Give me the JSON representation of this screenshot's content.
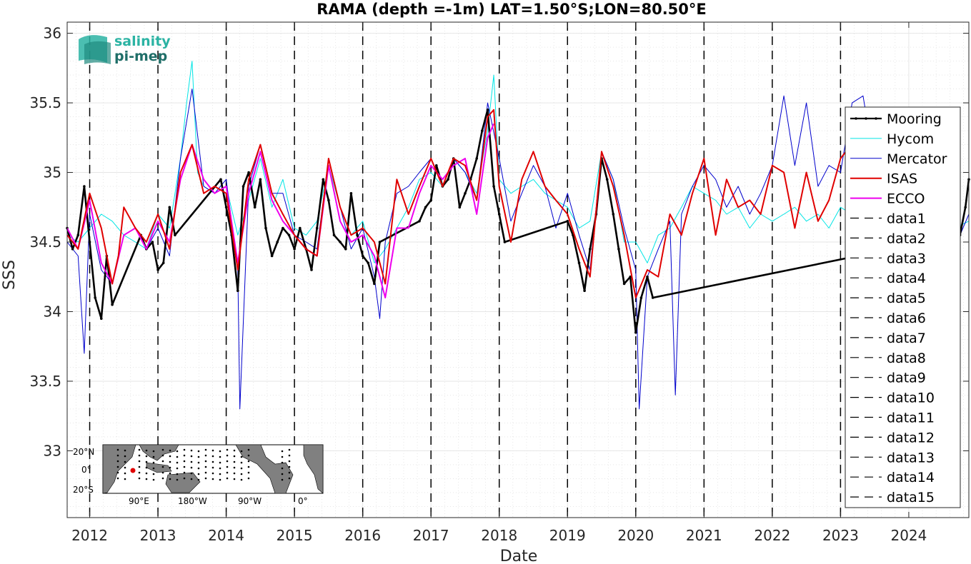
{
  "chart_data": {
    "type": "line",
    "title": "RAMA (depth =-1m) LAT=1.50°S;LON=80.50°E",
    "xlabel": "Date",
    "ylabel": "SSS",
    "xlim": [
      2011.67,
      2024.88
    ],
    "ylim": [
      32.52,
      36.08
    ],
    "grid": true,
    "legend_position": "right",
    "x_ticks": [
      2012,
      2013,
      2014,
      2015,
      2016,
      2017,
      2018,
      2019,
      2020,
      2021,
      2022,
      2023,
      2024
    ],
    "x_tick_labels": [
      "2012",
      "2013",
      "2014",
      "2015",
      "2016",
      "2017",
      "2018",
      "2019",
      "2020",
      "2021",
      "2022",
      "2023",
      "2024"
    ],
    "y_ticks": [
      33,
      33.5,
      34,
      34.5,
      35,
      35.5,
      36
    ],
    "y_tick_labels": [
      "33",
      "33.5",
      "34",
      "34.5",
      "35",
      "35.5",
      "36"
    ],
    "year_markers": [
      2012,
      2013,
      2014,
      2015,
      2016,
      2017,
      2018,
      2019,
      2020,
      2021,
      2022,
      2023
    ],
    "series": [
      {
        "name": "Mooring",
        "color": "#000000",
        "style": "solid-dots",
        "x": [
          2011.67,
          2011.75,
          2011.83,
          2011.92,
          2012.0,
          2012.08,
          2012.17,
          2012.25,
          2012.33,
          2012.75,
          2012.83,
          2012.92,
          2013.0,
          2013.08,
          2013.17,
          2013.25,
          2013.92,
          2014.0,
          2014.08,
          2014.17,
          2014.25,
          2014.33,
          2014.42,
          2014.5,
          2014.58,
          2014.67,
          2014.75,
          2014.83,
          2014.92,
          2015.0,
          2015.08,
          2015.17,
          2015.25,
          2015.33,
          2015.42,
          2015.5,
          2015.58,
          2015.67,
          2015.75,
          2015.83,
          2015.92,
          2016.0,
          2016.08,
          2016.17,
          2016.25,
          2016.83,
          2016.92,
          2017.0,
          2017.08,
          2017.17,
          2017.25,
          2017.33,
          2017.42,
          2017.5,
          2017.58,
          2017.67,
          2017.75,
          2017.83,
          2017.92,
          2018.0,
          2018.08,
          2019.0,
          2019.08,
          2019.17,
          2019.25,
          2019.33,
          2019.42,
          2019.5,
          2019.58,
          2019.67,
          2019.75,
          2019.83,
          2019.92,
          2020.0,
          2020.08,
          2020.17,
          2020.25,
          2024.75,
          2024.83,
          2024.88
        ],
        "y": [
          34.6,
          34.45,
          34.55,
          34.9,
          34.5,
          34.1,
          33.95,
          34.4,
          34.05,
          34.55,
          34.45,
          34.5,
          34.3,
          34.35,
          34.75,
          34.55,
          34.95,
          34.75,
          34.55,
          34.15,
          34.9,
          35.0,
          34.75,
          34.95,
          34.6,
          34.4,
          34.5,
          34.6,
          34.55,
          34.45,
          34.6,
          34.45,
          34.3,
          34.6,
          34.95,
          34.8,
          34.55,
          34.5,
          34.45,
          34.85,
          34.55,
          34.4,
          34.35,
          34.2,
          34.5,
          34.65,
          34.75,
          34.8,
          35.05,
          34.9,
          34.95,
          35.1,
          34.75,
          34.85,
          34.95,
          35.1,
          35.3,
          35.45,
          34.9,
          34.7,
          34.5,
          34.65,
          34.55,
          34.35,
          34.15,
          34.45,
          34.7,
          35.1,
          34.95,
          34.7,
          34.45,
          34.2,
          34.25,
          33.85,
          34.1,
          34.25,
          34.1,
          34.55,
          34.75,
          34.95
        ]
      },
      {
        "name": "Hycom",
        "color": "#00e5e5",
        "style": "solid",
        "x": [
          2011.67,
          2011.83,
          2012.0,
          2012.17,
          2012.33,
          2012.5,
          2012.67,
          2012.83,
          2013.0,
          2013.17,
          2013.33,
          2013.42,
          2013.5,
          2013.58,
          2013.67,
          2013.83,
          2014.0,
          2014.17,
          2014.33,
          2014.5,
          2014.67,
          2014.83,
          2015.0,
          2015.17,
          2015.33,
          2015.5,
          2015.67,
          2015.83,
          2016.0,
          2016.17,
          2016.33,
          2016.5,
          2016.67,
          2016.83,
          2017.0,
          2017.17,
          2017.33,
          2017.5,
          2017.67,
          2017.83,
          2017.92,
          2018.0,
          2018.17,
          2018.33,
          2018.5,
          2018.67,
          2018.83,
          2019.0,
          2019.17,
          2019.33,
          2019.5,
          2019.67,
          2019.83,
          2020.0,
          2020.17,
          2020.33,
          2020.5,
          2020.67,
          2020.83,
          2021.0,
          2021.17,
          2021.33,
          2021.5,
          2021.67,
          2021.83,
          2022.0,
          2022.17,
          2022.33,
          2022.5,
          2022.67,
          2022.83,
          2023.0,
          2023.17,
          2023.33,
          2023.5,
          2023.67,
          2023.83,
          2024.0,
          2024.17,
          2024.33,
          2024.5,
          2024.67,
          2024.88
        ],
        "y": [
          34.55,
          34.5,
          34.6,
          34.7,
          34.65,
          34.55,
          34.5,
          34.45,
          34.7,
          34.6,
          35.1,
          35.5,
          35.8,
          35.0,
          34.9,
          34.85,
          34.9,
          34.55,
          34.8,
          35.1,
          34.75,
          34.95,
          34.6,
          34.55,
          34.65,
          35.05,
          34.75,
          34.55,
          34.65,
          34.35,
          34.45,
          34.6,
          34.75,
          34.95,
          35.0,
          34.9,
          35.1,
          35.0,
          34.85,
          35.3,
          35.7,
          34.95,
          34.85,
          34.9,
          34.95,
          34.85,
          34.8,
          34.75,
          34.6,
          34.65,
          35.15,
          34.95,
          34.5,
          34.5,
          34.35,
          34.55,
          34.6,
          34.75,
          34.9,
          34.85,
          34.8,
          34.7,
          34.75,
          34.6,
          34.7,
          34.65,
          34.7,
          34.75,
          34.65,
          34.7,
          34.6,
          34.75,
          34.7,
          34.85,
          34.75,
          34.65,
          34.7,
          34.6,
          34.75,
          34.65,
          34.7,
          34.6,
          34.65
        ]
      },
      {
        "name": "Mercator",
        "color": "#0000cc",
        "style": "solid",
        "x": [
          2011.67,
          2011.83,
          2011.92,
          2012.0,
          2012.17,
          2012.33,
          2012.5,
          2012.67,
          2012.83,
          2013.0,
          2013.17,
          2013.33,
          2013.5,
          2013.67,
          2013.83,
          2014.0,
          2014.17,
          2014.2,
          2014.33,
          2014.5,
          2014.67,
          2014.83,
          2015.0,
          2015.17,
          2015.33,
          2015.5,
          2015.67,
          2015.83,
          2016.0,
          2016.17,
          2016.25,
          2016.33,
          2016.5,
          2016.67,
          2016.83,
          2017.0,
          2017.17,
          2017.33,
          2017.5,
          2017.67,
          2017.83,
          2018.0,
          2018.17,
          2018.33,
          2018.5,
          2018.67,
          2018.83,
          2019.0,
          2019.17,
          2019.33,
          2019.5,
          2019.67,
          2019.83,
          2020.0,
          2020.05,
          2020.17,
          2020.33,
          2020.5,
          2020.58,
          2020.67,
          2020.83,
          2021.0,
          2021.17,
          2021.33,
          2021.5,
          2021.67,
          2021.83,
          2022.0,
          2022.17,
          2022.33,
          2022.5,
          2022.67,
          2022.83,
          2023.0,
          2023.17,
          2023.33,
          2023.5,
          2023.67,
          2023.83,
          2024.0,
          2024.17,
          2024.33,
          2024.5,
          2024.67,
          2024.75,
          2024.88
        ],
        "y": [
          34.5,
          34.4,
          33.7,
          34.7,
          34.3,
          34.2,
          34.55,
          34.6,
          34.45,
          34.6,
          34.4,
          35.1,
          35.6,
          34.9,
          34.85,
          34.95,
          34.3,
          33.3,
          34.9,
          35.2,
          34.85,
          34.85,
          34.55,
          34.5,
          34.45,
          35.1,
          34.75,
          34.45,
          34.6,
          34.25,
          33.95,
          34.5,
          34.85,
          34.9,
          35.0,
          35.1,
          34.9,
          35.1,
          35.0,
          34.8,
          35.5,
          35.1,
          34.65,
          34.85,
          35.05,
          34.9,
          34.6,
          34.85,
          34.55,
          34.3,
          35.15,
          34.95,
          34.6,
          34.3,
          33.3,
          34.25,
          34.45,
          34.65,
          33.4,
          34.7,
          34.9,
          35.05,
          34.95,
          34.75,
          34.9,
          34.7,
          34.85,
          35.05,
          35.55,
          35.05,
          35.5,
          34.9,
          35.05,
          35.0,
          35.5,
          35.55,
          35.05,
          35.1,
          35.45,
          35.0,
          34.85,
          34.8,
          34.9,
          34.8,
          34.55,
          34.7
        ]
      },
      {
        "name": "ISAS",
        "color": "#e00000",
        "style": "solid",
        "x": [
          2011.67,
          2011.83,
          2012.0,
          2012.17,
          2012.33,
          2012.42,
          2012.5,
          2012.67,
          2012.83,
          2013.0,
          2013.17,
          2013.33,
          2013.5,
          2013.67,
          2013.83,
          2014.0,
          2014.17,
          2014.33,
          2014.5,
          2014.67,
          2014.83,
          2015.0,
          2015.17,
          2015.33,
          2015.5,
          2015.67,
          2015.83,
          2016.0,
          2016.17,
          2016.33,
          2016.5,
          2016.67,
          2016.83,
          2017.0,
          2017.17,
          2017.33,
          2017.5,
          2017.67,
          2017.83,
          2017.92,
          2018.0,
          2018.17,
          2018.33,
          2018.5,
          2018.67,
          2018.83,
          2019.0,
          2019.17,
          2019.33,
          2019.5,
          2019.67,
          2019.83,
          2020.0,
          2020.17,
          2020.33,
          2020.5,
          2020.67,
          2020.83,
          2021.0,
          2021.17,
          2021.33,
          2021.5,
          2021.67,
          2021.83,
          2022.0,
          2022.17,
          2022.33,
          2022.5,
          2022.67,
          2022.83,
          2023.0,
          2023.08,
          2023.17
        ],
        "y": [
          34.55,
          34.45,
          34.85,
          34.6,
          34.2,
          34.4,
          34.75,
          34.6,
          34.5,
          34.7,
          34.45,
          35.0,
          35.2,
          34.85,
          34.9,
          34.85,
          34.3,
          34.95,
          35.2,
          34.85,
          34.7,
          34.55,
          34.45,
          34.4,
          35.1,
          34.75,
          34.55,
          34.6,
          34.5,
          34.2,
          34.95,
          34.7,
          34.9,
          35.1,
          34.9,
          35.1,
          35.05,
          34.8,
          35.4,
          35.45,
          34.9,
          34.5,
          34.95,
          35.15,
          34.9,
          34.8,
          34.7,
          34.45,
          34.25,
          35.15,
          34.9,
          34.55,
          34.1,
          34.3,
          34.25,
          34.7,
          34.55,
          34.85,
          35.1,
          34.55,
          34.95,
          34.75,
          34.8,
          34.7,
          35.05,
          35.0,
          34.6,
          35.0,
          34.65,
          34.8,
          35.1,
          35.15,
          35.0
        ]
      },
      {
        "name": "ECCO",
        "color": "#ee00ee",
        "style": "solid",
        "x": [
          2011.67,
          2011.83,
          2012.0,
          2012.17,
          2012.33,
          2012.5,
          2012.67,
          2012.83,
          2013.0,
          2013.17,
          2013.33,
          2013.5,
          2013.67,
          2013.83,
          2014.0,
          2014.17,
          2014.33,
          2014.5,
          2014.67,
          2014.83,
          2015.0,
          2015.17,
          2015.33,
          2015.5,
          2015.67,
          2015.83,
          2016.0,
          2016.17,
          2016.33,
          2016.5,
          2016.67,
          2016.83,
          2017.0,
          2017.17,
          2017.33,
          2017.5,
          2017.67,
          2017.83,
          2017.92
        ],
        "y": [
          34.6,
          34.45,
          34.8,
          34.35,
          34.2,
          34.55,
          34.6,
          34.45,
          34.65,
          34.5,
          34.95,
          35.2,
          34.95,
          34.85,
          34.9,
          34.35,
          34.85,
          35.15,
          34.8,
          34.65,
          34.55,
          34.45,
          34.4,
          35.05,
          34.65,
          34.5,
          34.55,
          34.4,
          34.1,
          34.6,
          34.6,
          34.85,
          35.05,
          34.95,
          35.05,
          35.1,
          34.7,
          35.25,
          35.35
        ]
      }
    ],
    "legend_dashed_entries": [
      "data1",
      "data2",
      "data3",
      "data4",
      "data5",
      "data6",
      "data7",
      "data8",
      "data9",
      "data10",
      "data11",
      "data12",
      "data13",
      "data14",
      "data15"
    ]
  },
  "logo": {
    "line1": "salinity",
    "line2": "pi-mep"
  },
  "inset_map": {
    "lat_labels": [
      "20°N",
      "0°",
      "20°S"
    ],
    "lon_labels": [
      "90°E",
      "180°W",
      "90°W",
      "0°"
    ],
    "land_color": "#808080",
    "highlight_color": "#e00000"
  }
}
